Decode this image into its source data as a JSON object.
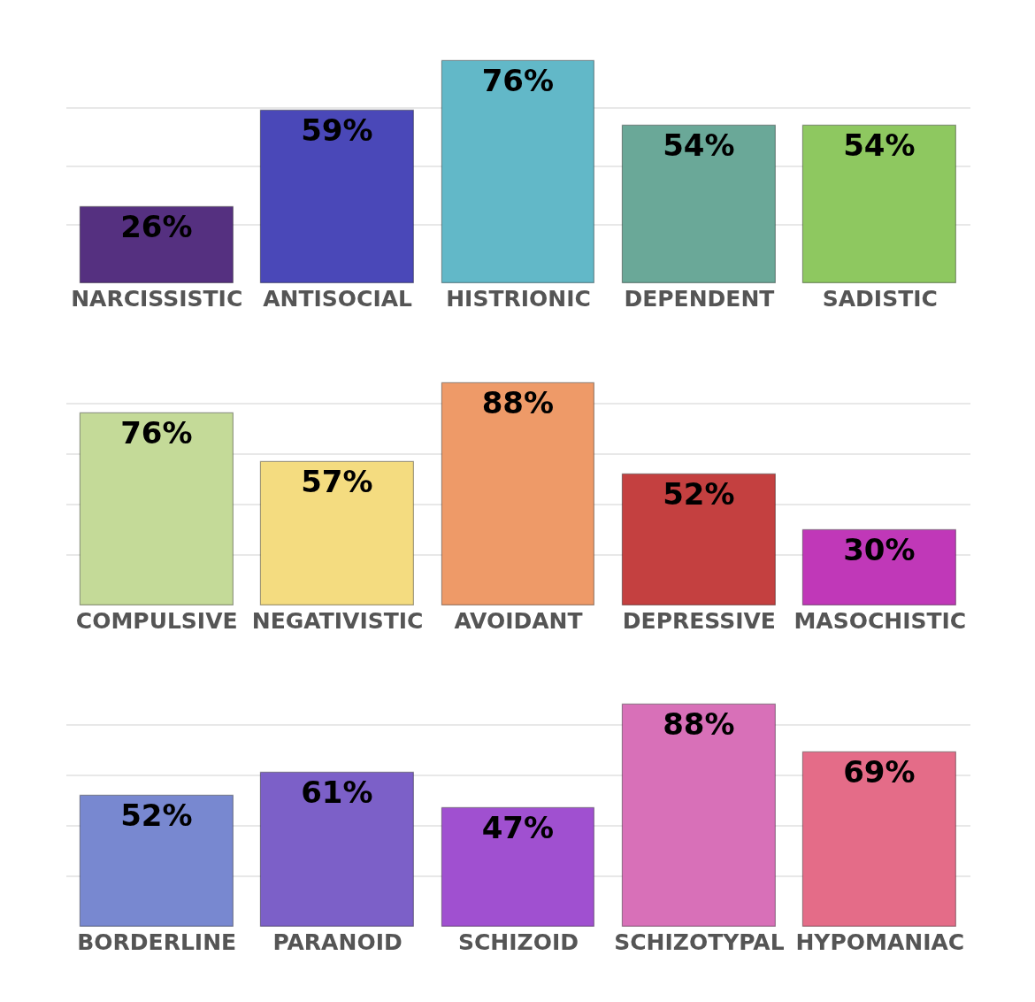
{
  "chart_data": [
    {
      "type": "bar",
      "categories": [
        "NARCISSISTIC",
        "ANTISOCIAL",
        "HISTRIONIC",
        "DEPENDENT",
        "SADISTIC"
      ],
      "values": [
        26,
        59,
        76,
        54,
        54
      ],
      "value_labels": [
        "26%",
        "59%",
        "76%",
        "54%",
        "54%"
      ],
      "colors": [
        "#553080",
        "#4a48b8",
        "#62b8c8",
        "#6aa898",
        "#8ec860"
      ],
      "grid": "y",
      "tick_labels": "x"
    },
    {
      "type": "bar",
      "categories": [
        "COMPULSIVE",
        "NEGATIVISTIC",
        "AVOIDANT",
        "DEPRESSIVE",
        "MASOCHISTIC"
      ],
      "values": [
        76,
        57,
        88,
        52,
        30
      ],
      "value_labels": [
        "76%",
        "57%",
        "88%",
        "52%",
        "30%"
      ],
      "colors": [
        "#c4da98",
        "#f4dc80",
        "#ee9a68",
        "#c44040",
        "#c038b8"
      ],
      "grid": "y",
      "tick_labels": "x"
    },
    {
      "type": "bar",
      "categories": [
        "BORDERLINE",
        "PARANOID",
        "SCHIZOID",
        "SCHIZOTYPAL",
        "HYPOMANIAC"
      ],
      "values": [
        52,
        61,
        47,
        88,
        69
      ],
      "value_labels": [
        "52%",
        "61%",
        "47%",
        "88%",
        "69%"
      ],
      "colors": [
        "#7888d0",
        "#7c60c8",
        "#a050d0",
        "#d870b8",
        "#e46c88"
      ],
      "grid": "y",
      "tick_labels": "x"
    }
  ]
}
